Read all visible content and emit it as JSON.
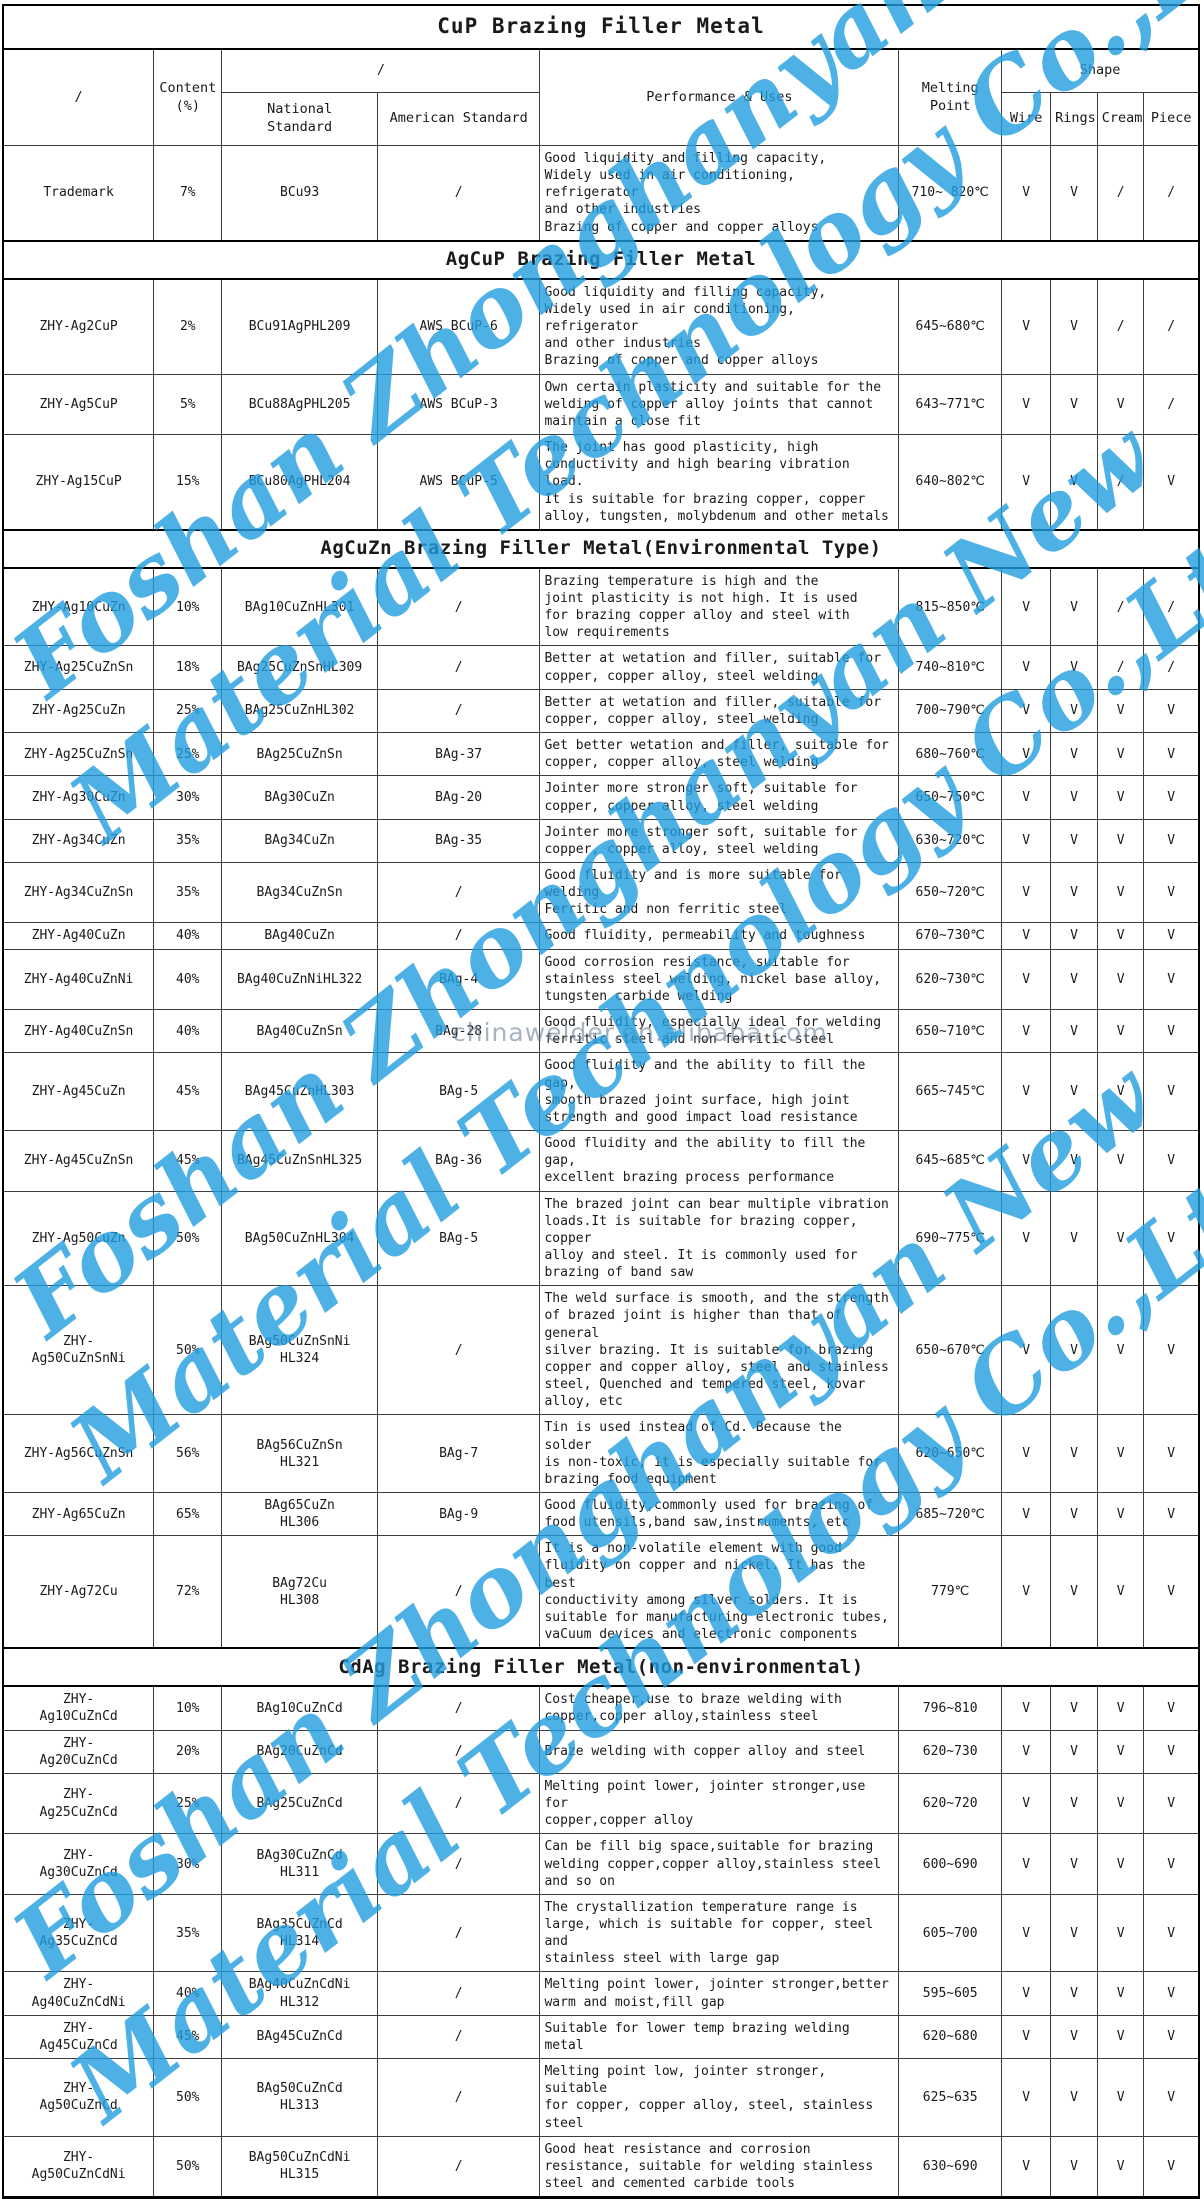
{
  "title": "CuP Brazing Filler Metal",
  "header": {
    "trademark_col": "/",
    "content_col": "Content\n(%)",
    "standard_group": "/",
    "national_col": "National\nStandard",
    "american_col": "American Standard",
    "performance_col": "Performance & Uses",
    "melting_col": "Melting Point",
    "shape_col": "Shape",
    "shape_subcols": [
      "Wire",
      "Rings",
      "Cream",
      "Piece"
    ]
  },
  "rows": [
    {
      "type": "data",
      "trademark": "Trademark",
      "content": "7%",
      "national": "BCu93",
      "american": "/",
      "performance": "Good liquidity and filling capacity,\nWidely used in air conditioning, refrigerator\nand other industries\nBrazing of copper and copper alloys",
      "melting": "710~ 820℃",
      "shapes": [
        "V",
        "V",
        "/",
        "/"
      ]
    },
    {
      "type": "section",
      "label": "AgCuP Brazing Filler Metal"
    },
    {
      "type": "data",
      "trademark": "ZHY-Ag2CuP",
      "content": "2%",
      "national": "BCu91AgPHL209",
      "american": "AWS BCuP-6",
      "performance": "Good liquidity and filling capacity,\nWidely used in air conditioning, refrigerator\nand other industries\nBrazing of copper and copper alloys",
      "melting": "645~680℃",
      "shapes": [
        "V",
        "V",
        "/",
        "/"
      ]
    },
    {
      "type": "data",
      "trademark": "ZHY-Ag5CuP",
      "content": "5%",
      "national": "BCu88AgPHL205",
      "american": "AWS BCuP-3",
      "performance": "Own certain plasticity and suitable for the\nwelding of copper alloy joints that cannot\nmaintain a close fit",
      "melting": "643~771℃",
      "shapes": [
        "V",
        "V",
        "V",
        "/"
      ]
    },
    {
      "type": "data",
      "trademark": "ZHY-Ag15CuP",
      "content": "15%",
      "national": "BCu80AgPHL204",
      "american": "AWS BCuP-5",
      "performance": "The joint has good plasticity, high\nconductivity and high bearing vibration load.\nIt is suitable for brazing copper, copper\nalloy, tungsten, molybdenum and other metals",
      "melting": "640~802℃",
      "shapes": [
        "V",
        "V",
        "/",
        "V"
      ]
    },
    {
      "type": "section",
      "label": "AgCuZn Brazing Filler Metal(Environmental Type)"
    },
    {
      "type": "data",
      "trademark": "ZHY-Ag10CuZn",
      "content": "10%",
      "national": "BAg10CuZnHL301",
      "american": "/",
      "performance": "Brazing temperature is high and the\njoint plasticity is not high. It is used\nfor brazing copper alloy and steel with\nlow requirements",
      "melting": "815~850℃",
      "shapes": [
        "V",
        "V",
        "/",
        "/"
      ]
    },
    {
      "type": "data",
      "trademark": "ZHY-Ag25CuZnSn",
      "content": "18%",
      "national": "BAg25CuZnSnHL309",
      "american": "/",
      "performance": "Better at wetation and filler, suitable for\ncopper, copper alloy, steel welding",
      "melting": "740~810℃",
      "shapes": [
        "V",
        "V",
        "/",
        "/"
      ]
    },
    {
      "type": "data",
      "trademark": "ZHY-Ag25CuZn",
      "content": "25%",
      "national": "BAg25CuZnHL302",
      "american": "/",
      "performance": "Better at wetation and filler, suitable for\ncopper, copper alloy, steel welding",
      "melting": "700~790℃",
      "shapes": [
        "V",
        "V",
        "V",
        "V"
      ]
    },
    {
      "type": "data",
      "trademark": "ZHY-Ag25CuZnSn",
      "content": "25%",
      "national": "BAg25CuZnSn",
      "american": "BAg-37",
      "performance": "Get better wetation and filler, suitable for\ncopper, copper alloy, steel welding",
      "melting": "680~760℃",
      "shapes": [
        "V",
        "V",
        "V",
        "V"
      ]
    },
    {
      "type": "data",
      "trademark": "ZHY-Ag30CuZn",
      "content": "30%",
      "national": "BAg30CuZn",
      "american": "BAg-20",
      "performance": "Jointer more stronger soft, suitable for\ncopper, copper alloy, steel welding",
      "melting": "650~750℃",
      "shapes": [
        "V",
        "V",
        "V",
        "V"
      ]
    },
    {
      "type": "data",
      "trademark": "ZHY-Ag34CuZn",
      "content": "35%",
      "national": "BAg34CuZn",
      "american": "BAg-35",
      "performance": "Jointer more stronger soft, suitable for\ncopper, copper alloy, steel welding",
      "melting": "630~720℃",
      "shapes": [
        "V",
        "V",
        "V",
        "V"
      ]
    },
    {
      "type": "data",
      "trademark": "ZHY-Ag34CuZnSn",
      "content": "35%",
      "national": "BAg34CuZnSn",
      "american": "/",
      "performance": "Good fluidity and is more suitable for welding\nFerritic and non ferritic steel",
      "melting": "650~720℃",
      "shapes": [
        "V",
        "V",
        "V",
        "V"
      ]
    },
    {
      "type": "data",
      "trademark": "ZHY-Ag40CuZn",
      "content": "40%",
      "national": "BAg40CuZn",
      "american": "/",
      "performance": "Good fluidity, permeability and toughness",
      "melting": "670~730℃",
      "shapes": [
        "V",
        "V",
        "V",
        "V"
      ]
    },
    {
      "type": "data",
      "trademark": "ZHY-Ag40CuZnNi",
      "content": "40%",
      "national": "BAg40CuZnNiHL322",
      "american": "BAg-4",
      "performance": "Good corrosion resistance, suitable for\nstainless steel welding, nickel base alloy,\ntungsten carbide welding",
      "melting": "620~730℃",
      "shapes": [
        "V",
        "V",
        "V",
        "V"
      ]
    },
    {
      "type": "data",
      "trademark": "ZHY-Ag40CuZnSn",
      "content": "40%",
      "national": "BAg40CuZnSn",
      "american": "BAg-28",
      "performance": "Good fluidity, especially ideal for welding\nferritic steel and non ferritic steel",
      "melting": "650~710℃",
      "shapes": [
        "V",
        "V",
        "V",
        "V"
      ]
    },
    {
      "type": "data",
      "trademark": "ZHY-Ag45CuZn",
      "content": "45%",
      "national": "BAg45CuZnHL303",
      "american": "BAg-5",
      "performance": "Good fluidity and the ability to fill the gap,\nsmooth brazed joint surface, high joint\nstrength and good impact load resistance",
      "melting": "665~745℃",
      "shapes": [
        "V",
        "V",
        "V",
        "V"
      ]
    },
    {
      "type": "data",
      "trademark": "ZHY-Ag45CuZnSn",
      "content": "45%",
      "national": "BAg45CuZnSnHL325",
      "american": "BAg-36",
      "performance": "Good fluidity and the ability to fill the gap,\nexcellent brazing process performance",
      "melting": "645~685℃",
      "shapes": [
        "V",
        "V",
        "V",
        "V"
      ]
    },
    {
      "type": "data",
      "trademark": "ZHY-Ag50CuZn",
      "content": "50%",
      "national": "BAg50CuZnHL304",
      "american": "BAg-5",
      "performance": "The brazed joint can bear multiple vibration\nloads.It is suitable for brazing copper, copper\nalloy and steel. It is commonly used for\nbrazing of band saw",
      "melting": "690~775℃",
      "shapes": [
        "V",
        "V",
        "V",
        "V"
      ]
    },
    {
      "type": "data",
      "trademark": "ZHY-\nAg50CuZnSnNi",
      "content": "50%",
      "national": "BAg50CuZnSnNi\nHL324",
      "american": "/",
      "performance": "The weld surface is smooth, and the strength\nof brazed joint is higher than that of general\nsilver brazing. It is suitable for brazing\ncopper and copper alloy, steel and stainless\nsteel, Quenched and tempered steel, kovar\nalloy, etc",
      "melting": "650~670℃",
      "shapes": [
        "V",
        "V",
        "V",
        "V"
      ]
    },
    {
      "type": "data",
      "trademark": "ZHY-Ag56CuZnSn",
      "content": "56%",
      "national": "BAg56CuZnSn\nHL321",
      "american": "BAg-7",
      "performance": "Tin is used instead of Cd. Because the solder\nis non-toxic, it is especially suitable for\nbrazing food equipment",
      "melting": "620~650℃",
      "shapes": [
        "V",
        "V",
        "V",
        "V"
      ]
    },
    {
      "type": "data",
      "trademark": "ZHY-Ag65CuZn",
      "content": "65%",
      "national": "BAg65CuZn\nHL306",
      "american": "BAg-9",
      "performance": "Good fluidity,commonly used for brazing of\nfood utensils,band saw,instruments, etc",
      "melting": "685~720℃",
      "shapes": [
        "V",
        "V",
        "V",
        "V"
      ]
    },
    {
      "type": "data",
      "trademark": "ZHY-Ag72Cu",
      "content": "72%",
      "national": "BAg72Cu\nHL308",
      "american": "/",
      "performance": "It is a non-volatile element with good\nfluidity on copper and nickel. It has the best\nconductivity among silver solders. It is\nsuitable for manufacturing electronic tubes,\nvaCuum devices and electronic components",
      "melting": "779℃",
      "shapes": [
        "V",
        "V",
        "V",
        "V"
      ]
    },
    {
      "type": "section",
      "label": "CdAg Brazing Filler Metal(non-environmental)"
    },
    {
      "type": "data",
      "trademark": "ZHY-\nAg10CuZnCd",
      "content": "10%",
      "national": "BAg10CuZnCd",
      "american": "/",
      "performance": "Cost cheaper,use to braze welding with\ncopper,copper alloy,stainless steel",
      "melting": "796~810",
      "shapes": [
        "V",
        "V",
        "V",
        "V"
      ]
    },
    {
      "type": "data",
      "trademark": "ZHY-\nAg20CuZnCd",
      "content": "20%",
      "national": "BAg20CuZnCd",
      "american": "/",
      "performance": "Braze welding with copper alloy and steel",
      "melting": "620~730",
      "shapes": [
        "V",
        "V",
        "V",
        "V"
      ]
    },
    {
      "type": "data",
      "trademark": "ZHY-\nAg25CuZnCd",
      "content": "25%",
      "national": "BAg25CuZnCd",
      "american": "/",
      "performance": "Melting point lower, jointer stronger,use for\ncopper,copper alloy",
      "melting": "620~720",
      "shapes": [
        "V",
        "V",
        "V",
        "V"
      ]
    },
    {
      "type": "data",
      "trademark": "ZHY-\nAg30CuZnCd",
      "content": "30%",
      "national": "BAg30CuZnCd\nHL311",
      "american": "/",
      "performance": "Can be fill big space,suitable for brazing\nwelding copper,copper alloy,stainless steel\nand so on",
      "melting": "600~690",
      "shapes": [
        "V",
        "V",
        "V",
        "V"
      ]
    },
    {
      "type": "data",
      "trademark": "ZHY-\nAg35CuZnCd",
      "content": "35%",
      "national": "BAg35CuZnCd\nHL314",
      "american": "/",
      "performance": "The crystallization temperature range is\nlarge, which is suitable for copper, steel and\nstainless steel with large gap",
      "melting": "605~700",
      "shapes": [
        "V",
        "V",
        "V",
        "V"
      ]
    },
    {
      "type": "data",
      "trademark": "ZHY-\nAg40CuZnCdNi",
      "content": "40%",
      "national": "BAg40CuZnCdNi\nHL312",
      "american": "/",
      "performance": "Melting point lower, jointer stronger,better\nwarm and moist,fill gap",
      "melting": "595~605",
      "shapes": [
        "V",
        "V",
        "V",
        "V"
      ]
    },
    {
      "type": "data",
      "trademark": "ZHY-\nAg45CuZnCd",
      "content": "45%",
      "national": "BAg45CuZnCd",
      "american": "/",
      "performance": "Suitable for lower temp brazing welding metal",
      "melting": "620~680",
      "shapes": [
        "V",
        "V",
        "V",
        "V"
      ]
    },
    {
      "type": "data",
      "trademark": "ZHY-\nAg50CuZnCd",
      "content": "50%",
      "national": "BAg50CuZnCd\nHL313",
      "american": "/",
      "performance": "Melting point low, jointer stronger, suitable\nfor copper, copper alloy, steel, stainless steel",
      "melting": "625~635",
      "shapes": [
        "V",
        "V",
        "V",
        "V"
      ]
    },
    {
      "type": "data",
      "trademark": "ZHY-\nAg50CuZnCdNi",
      "content": "50%",
      "national": "BAg50CuZnCdNi\nHL315",
      "american": "/",
      "performance": "Good heat resistance and corrosion\nresistance, suitable for welding stainless\nsteel and cemented carbide tools",
      "melting": "630~690",
      "shapes": [
        "V",
        "V",
        "V",
        "V"
      ]
    }
  ],
  "watermark": {
    "line1": "Foshan Zhonghanyan New",
    "line2": "Material Technology Co.,Ltd",
    "url": "chinawelder.en.alibaba.com",
    "accent_color": "#209edf"
  }
}
